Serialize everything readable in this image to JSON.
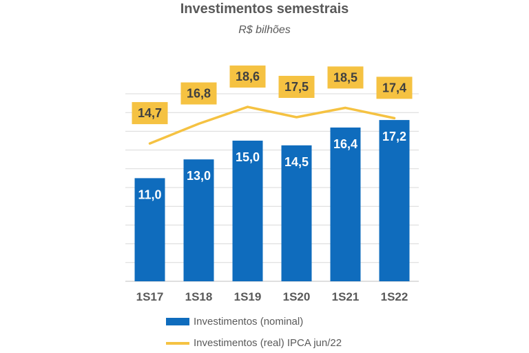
{
  "chart_data": {
    "type": "bar",
    "title": "Investimentos semestrais",
    "subtitle": "R$ bilhões",
    "categories": [
      "1S17",
      "1S18",
      "1S19",
      "1S20",
      "1S21",
      "1S22"
    ],
    "series": [
      {
        "name": "Investimentos (nominal)",
        "type": "bar",
        "color": "#0f6cbd",
        "values": [
          11.0,
          13.0,
          15.0,
          14.5,
          16.4,
          17.2
        ],
        "labels": [
          "11,0",
          "13,0",
          "15,0",
          "14,5",
          "16,4",
          "17,2"
        ]
      },
      {
        "name": "Investimentos (real) IPCA jun/22",
        "type": "line",
        "color": "#f5c242",
        "values": [
          14.7,
          16.8,
          18.6,
          17.5,
          18.5,
          17.4
        ],
        "labels": [
          "14,7",
          "16,8",
          "18,6",
          "17,5",
          "18,5",
          "17,4"
        ]
      }
    ],
    "ylim": [
      0,
      20
    ],
    "grid": true,
    "legend_position": "bottom"
  }
}
